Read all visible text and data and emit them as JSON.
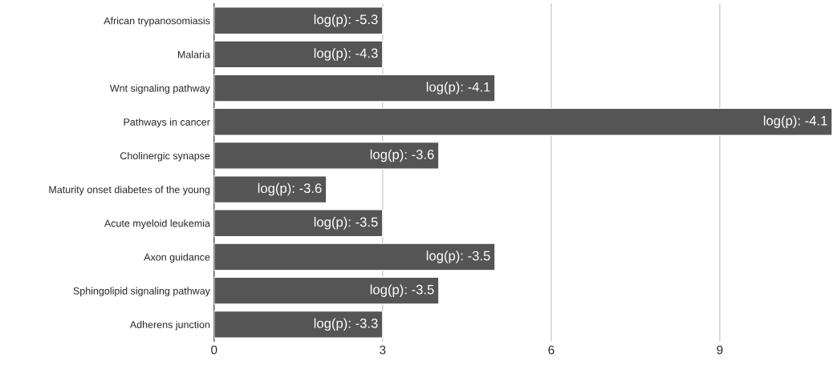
{
  "chart_data": {
    "type": "bar",
    "orientation": "horizontal",
    "categories": [
      "African trypanosomiasis",
      "Malaria",
      "Wnt signaling pathway",
      "Pathways in cancer",
      "Cholinergic synapse",
      "Maturity onset diabetes of the young",
      "Acute myeloid leukemia",
      "Axon guidance",
      "Sphingolipid signaling pathway",
      "Adherens junction"
    ],
    "values": [
      3,
      3,
      5,
      11,
      4,
      2,
      3,
      5,
      4,
      3
    ],
    "annotations": [
      {
        "text": "log(p): -5.3",
        "x": 3,
        "y": "African trypanosomiasis"
      },
      {
        "text": "log(p): -4.3",
        "x": 3,
        "y": "Malaria"
      },
      {
        "text": "log(p): -4.1",
        "x": 5,
        "y": "Wnt signaling pathway"
      },
      {
        "text": "log(p): -4.1",
        "x": 11,
        "y": "Pathways in cancer"
      },
      {
        "text": "log(p): -3.6",
        "x": 4,
        "y": "Cholinergic synapse"
      },
      {
        "text": "log(p): -3.6",
        "x": 2,
        "y": "Maturity onset diabetes of the young"
      },
      {
        "text": "log(p): -3.5",
        "x": 3,
        "y": "Acute myeloid leukemia"
      },
      {
        "text": "log(p): -3.5",
        "x": 5,
        "y": "Axon guidance"
      },
      {
        "text": "log(p): -3.5",
        "x": 4,
        "y": "Sphingolipid signaling pathway"
      },
      {
        "text": "log(p): -3.3",
        "x": 3,
        "y": "Adherens junction"
      }
    ],
    "color": "#555555",
    "xlim": [
      0,
      11
    ],
    "xticks": [
      0,
      3,
      6,
      9
    ],
    "grid": "x"
  }
}
